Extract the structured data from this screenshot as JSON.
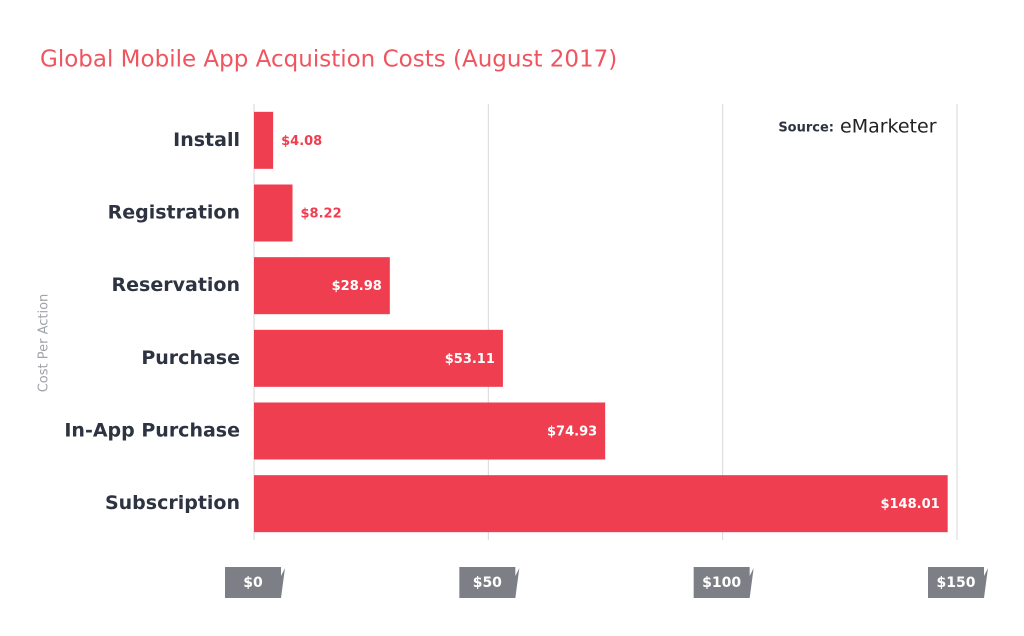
{
  "chart_data": {
    "type": "bar",
    "orientation": "horizontal",
    "title": "Global Mobile App Acquistion Costs (August 2017)",
    "y_label": "Cost Per Action",
    "source": "Source:",
    "source_brand": "eMarketer",
    "categories": [
      "Install",
      "Registration",
      "Reservation",
      "Purchase",
      "In-App Purchase",
      "Subscription"
    ],
    "values": [
      4.08,
      8.22,
      28.98,
      53.11,
      74.93,
      148.01
    ],
    "value_labels": [
      "$4.08",
      "$8.22",
      "$28.98",
      "$53.11",
      "$74.93",
      "$148.01"
    ],
    "color": "#ef3e4f",
    "xlim": [
      0,
      150
    ],
    "xticks": [
      {
        "value": 0,
        "label": "$0"
      },
      {
        "value": 50,
        "label": "$50"
      },
      {
        "value": 100,
        "label": "$100"
      },
      {
        "value": 150,
        "label": "$150"
      }
    ],
    "grid": true
  }
}
